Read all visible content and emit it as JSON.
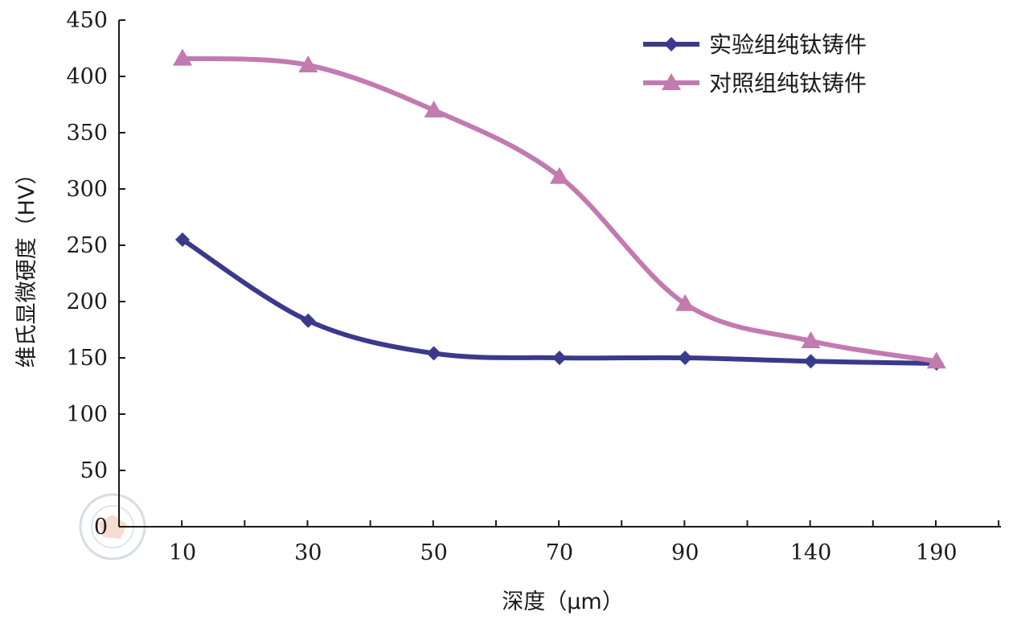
{
  "chart_data": {
    "type": "line",
    "title": "",
    "xlabel": "深度（μm）",
    "ylabel": "维氏显微硬度（HV）",
    "categories": [
      "10",
      "30",
      "50",
      "70",
      "90",
      "140",
      "190"
    ],
    "ylim": [
      0,
      450
    ],
    "yticks": [
      0,
      50,
      100,
      150,
      200,
      250,
      300,
      350,
      400,
      450
    ],
    "grid": false,
    "legend_position": "top-right",
    "series": [
      {
        "name": "实验组纯钛铸件",
        "marker": "diamond",
        "color": "#3a3a8c",
        "values": [
          255,
          183,
          154,
          150,
          150,
          147,
          145
        ]
      },
      {
        "name": "对照组纯钛铸件",
        "marker": "triangle",
        "color": "#c27ab0",
        "values": [
          416,
          410,
          370,
          311,
          198,
          165,
          147
        ]
      }
    ]
  }
}
